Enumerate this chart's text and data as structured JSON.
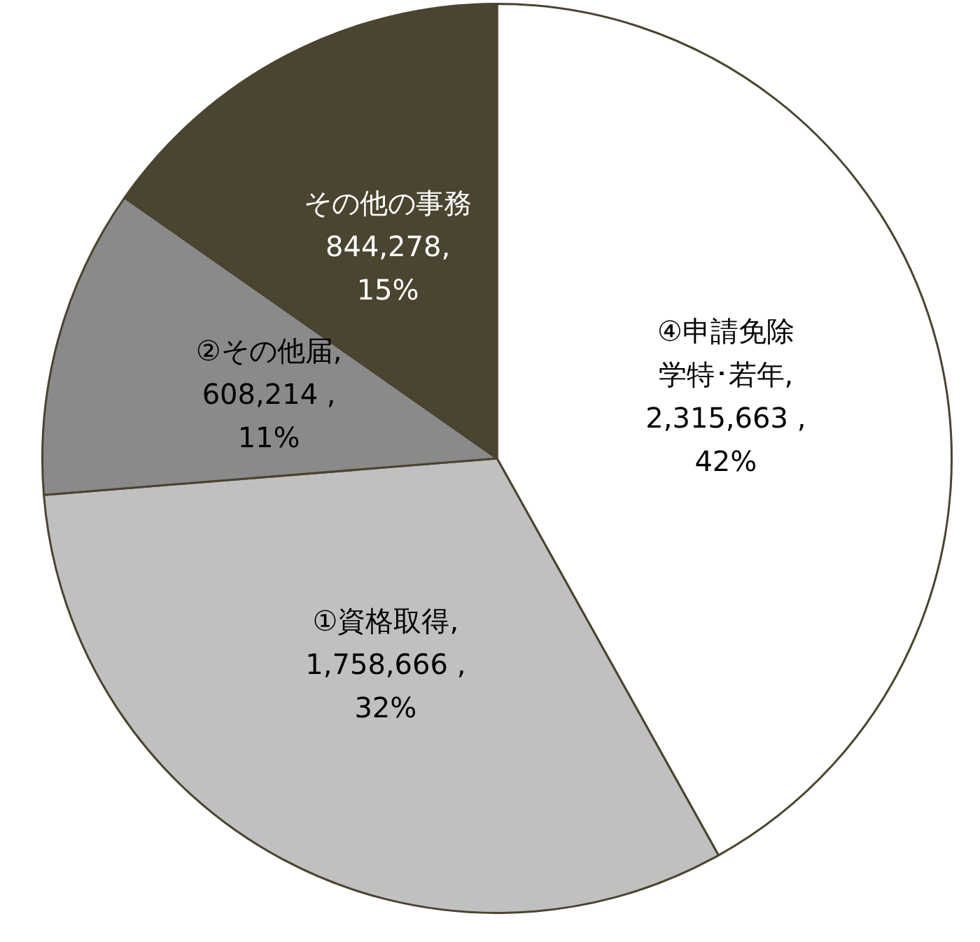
{
  "chart_data": {
    "type": "pie",
    "categories": [
      "④申請免除学特･若年",
      "①資格取得",
      "②その他届",
      "その他の事務"
    ],
    "values": [
      2315663,
      1758666,
      608214,
      844278
    ],
    "colors": [
      "#ffffff",
      "#c0c0c0",
      "#8a8a8a",
      "#4a4430"
    ],
    "value_labels": [
      ",\n2,315,663 ,\n42%",
      ",\n1,758,666 ,\n32%",
      ",\n608,214 ,\n11%",
      "\n844,278,\n15%"
    ],
    "legend": false
  }
}
